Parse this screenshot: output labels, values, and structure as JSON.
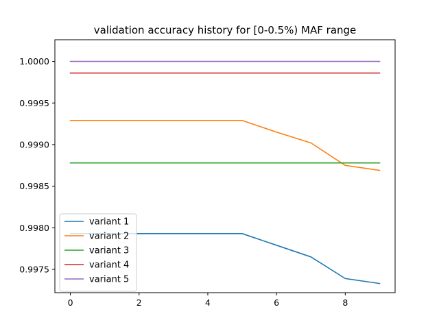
{
  "chart_data": {
    "type": "line",
    "title": "validation accuracy history for [0-0.5%) MAF range",
    "xlabel": "",
    "ylabel": "",
    "x": [
      0,
      1,
      2,
      3,
      4,
      5,
      6,
      7,
      8,
      9
    ],
    "xlim": [
      -0.45,
      9.45
    ],
    "ylim": [
      0.99722,
      1.00026
    ],
    "xticks": [
      0,
      2,
      4,
      6,
      8
    ],
    "xtick_labels": [
      "0",
      "2",
      "4",
      "6",
      "8"
    ],
    "yticks": [
      0.9975,
      0.998,
      0.9985,
      0.999,
      0.9995,
      1.0
    ],
    "ytick_labels": [
      "0.9975",
      "0.9980",
      "0.9985",
      "0.9990",
      "0.9995",
      "1.0000"
    ],
    "grid": false,
    "legend_position": "lower-left",
    "series": [
      {
        "name": "variant 1",
        "color": "#1f77b4",
        "values": [
          0.99793,
          0.99793,
          0.99793,
          0.99793,
          0.99793,
          0.99793,
          0.99779,
          0.99765,
          0.99739,
          0.99733
        ]
      },
      {
        "name": "variant 2",
        "color": "#ff7f0e",
        "values": [
          0.99929,
          0.99929,
          0.99929,
          0.99929,
          0.99929,
          0.99929,
          0.99915,
          0.99902,
          0.99875,
          0.99869
        ]
      },
      {
        "name": "variant 3",
        "color": "#2ca02c",
        "values": [
          0.99878,
          0.99878,
          0.99878,
          0.99878,
          0.99878,
          0.99878,
          0.99878,
          0.99878,
          0.99878,
          0.99878
        ]
      },
      {
        "name": "variant 4",
        "color": "#d62728",
        "values": [
          0.99986,
          0.99986,
          0.99986,
          0.99986,
          0.99986,
          0.99986,
          0.99986,
          0.99986,
          0.99986,
          0.99986
        ]
      },
      {
        "name": "variant 5",
        "color": "#9467bd",
        "values": [
          1.0,
          1.0,
          1.0,
          1.0,
          1.0,
          1.0,
          1.0,
          1.0,
          1.0,
          1.0
        ]
      }
    ]
  }
}
